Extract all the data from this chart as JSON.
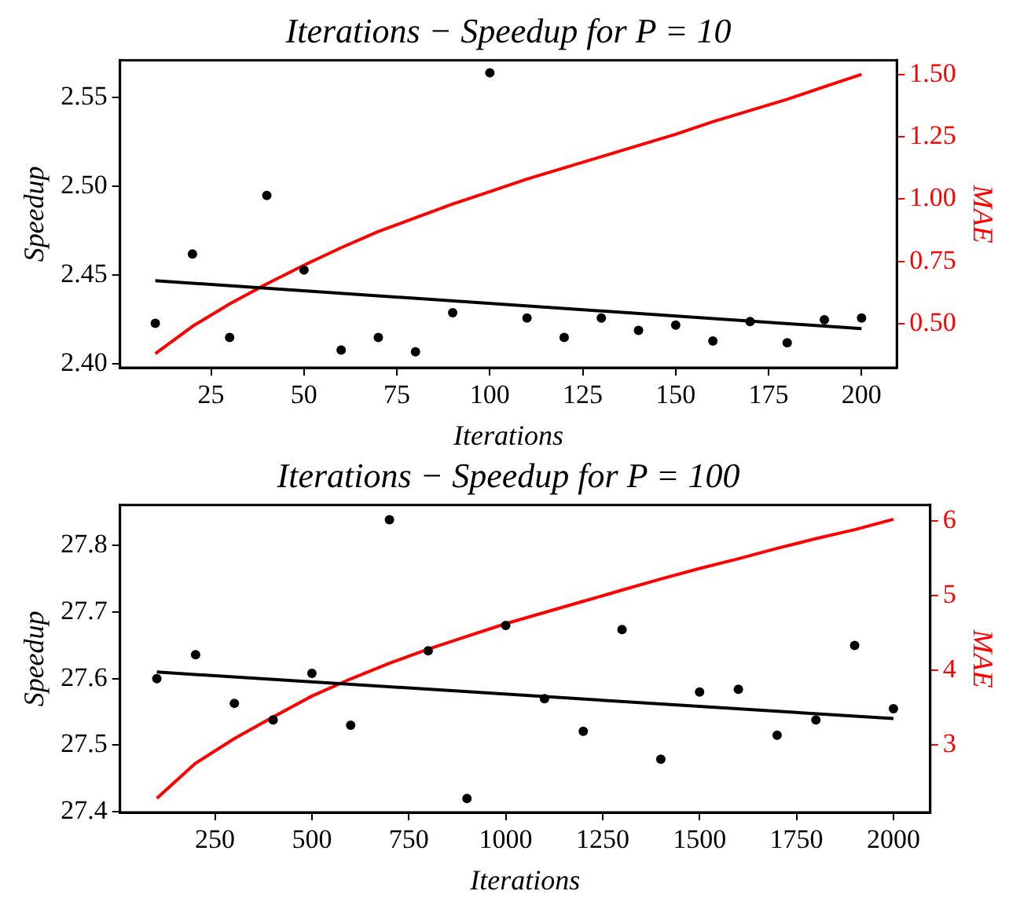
{
  "chart_data": [
    {
      "type": "scatter",
      "title": "Iterations − Speedup for P = 10",
      "xlabel": "Iterations",
      "ylabel": "Speedup",
      "y2label": "MAE",
      "xlim": [
        0.5,
        209.5
      ],
      "xticks": [
        25,
        50,
        75,
        100,
        125,
        150,
        175,
        200
      ],
      "ylim": [
        2.398,
        2.571
      ],
      "yticks": [
        {
          "value": 2.4,
          "label": "2.40"
        },
        {
          "value": 2.45,
          "label": "2.45"
        },
        {
          "value": 2.5,
          "label": "2.50"
        },
        {
          "value": 2.55,
          "label": "2.55"
        }
      ],
      "y2lim": [
        0.324,
        1.556
      ],
      "y2ticks": [
        {
          "value": 0.5,
          "label": "0.50"
        },
        {
          "value": 0.75,
          "label": "0.75"
        },
        {
          "value": 1.0,
          "label": "1.00"
        },
        {
          "value": 1.25,
          "label": "1.25"
        },
        {
          "value": 1.5,
          "label": "1.50"
        }
      ],
      "grid": false,
      "legend": false,
      "series": [
        {
          "type": "scatter",
          "marker": "circle",
          "color": "#000000",
          "x": [
            10,
            20,
            30,
            40,
            50,
            60,
            70,
            80,
            90,
            100,
            110,
            120,
            130,
            140,
            150,
            160,
            170,
            180,
            190,
            200
          ],
          "values": [
            2.423,
            2.462,
            2.415,
            2.495,
            2.453,
            2.408,
            2.415,
            2.407,
            2.429,
            2.564,
            2.426,
            2.415,
            2.426,
            2.419,
            2.422,
            2.413,
            2.424,
            2.412,
            2.425,
            2.426
          ]
        },
        {
          "type": "line",
          "marker": "none",
          "color": "#000000",
          "x": [
            10,
            200
          ],
          "values": [
            2.447,
            2.42
          ]
        },
        {
          "type": "line",
          "marker": "none",
          "axis": "y2",
          "color": "#ff0000",
          "x": [
            10,
            20,
            30,
            40,
            50,
            60,
            70,
            80,
            90,
            100,
            110,
            120,
            130,
            140,
            150,
            160,
            170,
            180,
            190,
            200
          ],
          "values": [
            0.38,
            0.49,
            0.58,
            0.66,
            0.735,
            0.805,
            0.87,
            0.925,
            0.98,
            1.03,
            1.08,
            1.125,
            1.17,
            1.215,
            1.26,
            1.31,
            1.355,
            1.4,
            1.45,
            1.5
          ]
        }
      ]
    },
    {
      "type": "scatter",
      "title": "Iterations − Speedup for P = 100",
      "xlabel": "Iterations",
      "ylabel": "Speedup",
      "y2label": "MAE",
      "xlim": [
        5,
        2095
      ],
      "xticks": [
        250,
        500,
        750,
        1000,
        1250,
        1500,
        1750,
        2000
      ],
      "ylim": [
        27.399,
        27.861
      ],
      "yticks": [
        27.4,
        27.5,
        27.6,
        27.7,
        27.8
      ],
      "y2lim": [
        2.09,
        6.21
      ],
      "y2ticks": [
        3,
        4,
        5,
        6
      ],
      "grid": false,
      "legend": false,
      "series": [
        {
          "type": "scatter",
          "marker": "circle",
          "color": "#000000",
          "x": [
            100,
            200,
            300,
            400,
            500,
            600,
            700,
            800,
            900,
            1000,
            1100,
            1200,
            1300,
            1400,
            1500,
            1600,
            1700,
            1800,
            1900,
            2000
          ],
          "values": [
            27.6,
            27.636,
            27.563,
            27.538,
            27.608,
            27.53,
            27.839,
            27.642,
            27.42,
            27.68,
            27.57,
            27.521,
            27.674,
            27.479,
            27.58,
            27.584,
            27.515,
            27.538,
            27.65,
            27.555
          ]
        },
        {
          "type": "line",
          "marker": "none",
          "color": "#000000",
          "x": [
            100,
            2000
          ],
          "values": [
            27.61,
            27.54
          ]
        },
        {
          "type": "line",
          "marker": "none",
          "axis": "y2",
          "color": "#ff0000",
          "x": [
            100,
            200,
            300,
            400,
            500,
            600,
            700,
            800,
            900,
            1000,
            1100,
            1200,
            1300,
            1400,
            1500,
            1600,
            1700,
            1800,
            1900,
            2000
          ],
          "values": [
            2.28,
            2.75,
            3.08,
            3.37,
            3.65,
            3.88,
            4.09,
            4.28,
            4.45,
            4.62,
            4.77,
            4.92,
            5.07,
            5.22,
            5.36,
            5.49,
            5.63,
            5.76,
            5.88,
            6.02
          ]
        }
      ]
    }
  ]
}
